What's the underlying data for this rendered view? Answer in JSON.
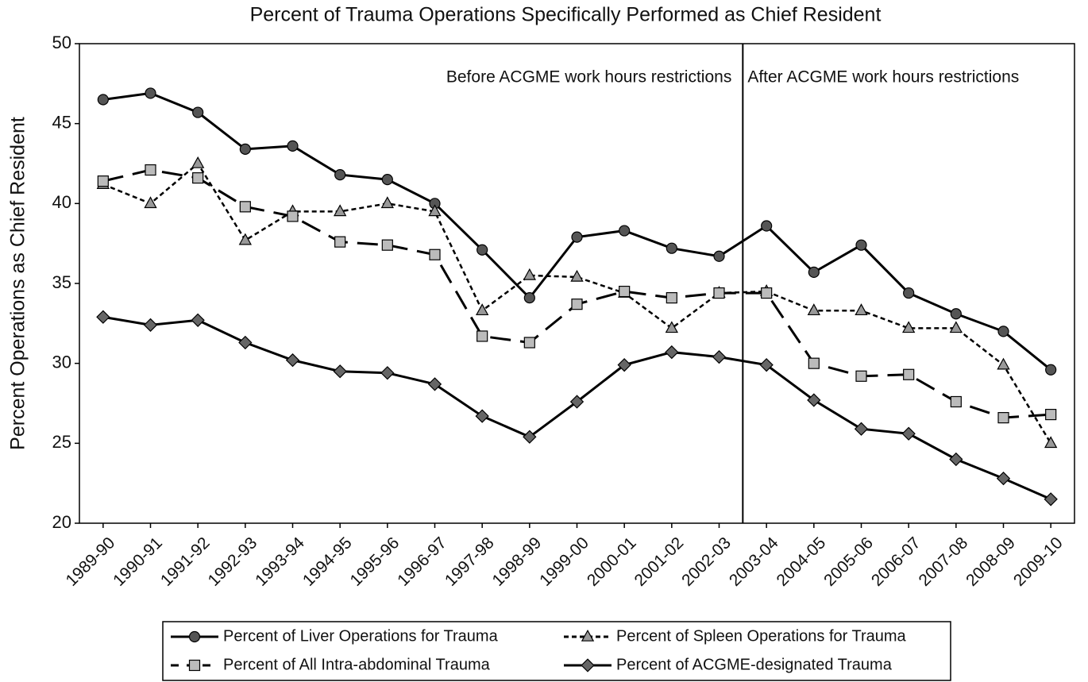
{
  "chart_data": {
    "type": "line",
    "title": "Percent of Trauma Operations Specifically Performed as Chief Resident",
    "y_label": "Percent Operations as Chief Resident",
    "annotations": [
      "Before ACGME work hours restrictions",
      "After ACGME work hours restrictions"
    ],
    "categories": [
      "1989-90",
      "1990-91",
      "1991-92",
      "1992-93",
      "1993-94",
      "1994-95",
      "1995-96",
      "1996-97",
      "1997-98",
      "1998-99",
      "1999-00",
      "2000-01",
      "2001-02",
      "2002-03",
      "2003-04",
      "2004-05",
      "2005-06",
      "2006-07",
      "2007-08",
      "2008-09",
      "2009-10"
    ],
    "ylim": [
      20,
      50
    ],
    "yticks": [
      20,
      25,
      30,
      35,
      40,
      45,
      50
    ],
    "legend": "bottom",
    "series": [
      {
        "name": "Percent of Liver Operations for Trauma",
        "color": "#000000",
        "marker": "circle",
        "marker_color": "#555555",
        "dash": "solid",
        "values": [
          46.5,
          46.9,
          45.7,
          43.4,
          43.6,
          41.8,
          41.5,
          40.0,
          37.1,
          34.1,
          37.9,
          38.3,
          37.2,
          36.7,
          38.6,
          35.7,
          37.4,
          34.4,
          33.1,
          32.0,
          29.6
        ]
      },
      {
        "name": "Percent of Spleen Operations for Trauma",
        "color": "#000000",
        "marker": "triangle",
        "marker_color": "#999999",
        "dash": "dotted",
        "values": [
          41.2,
          40.0,
          42.5,
          37.7,
          39.5,
          39.5,
          40.0,
          39.5,
          33.3,
          35.5,
          35.4,
          34.4,
          32.2,
          34.4,
          34.5,
          33.3,
          33.3,
          32.2,
          32.2,
          29.9,
          25.0
        ]
      },
      {
        "name": "Percent of All Intra-abdominal Trauma",
        "color": "#000000",
        "marker": "square",
        "marker_color": "#bbbbbb",
        "dash": "dashed",
        "values": [
          41.4,
          42.1,
          41.6,
          39.8,
          39.2,
          37.6,
          37.4,
          36.8,
          31.7,
          31.3,
          33.7,
          34.5,
          34.1,
          34.4,
          34.4,
          30.0,
          29.2,
          29.3,
          27.6,
          26.6,
          26.8
        ]
      },
      {
        "name": "Percent of ACGME-designated Trauma",
        "color": "#000000",
        "marker": "diamond",
        "marker_color": "#666666",
        "dash": "solid",
        "values": [
          32.9,
          32.4,
          32.7,
          31.3,
          30.2,
          29.5,
          29.4,
          28.7,
          26.7,
          25.4,
          27.6,
          29.9,
          30.7,
          30.4,
          29.9,
          27.7,
          25.9,
          25.6,
          24.0,
          22.8,
          21.5
        ]
      }
    ]
  }
}
